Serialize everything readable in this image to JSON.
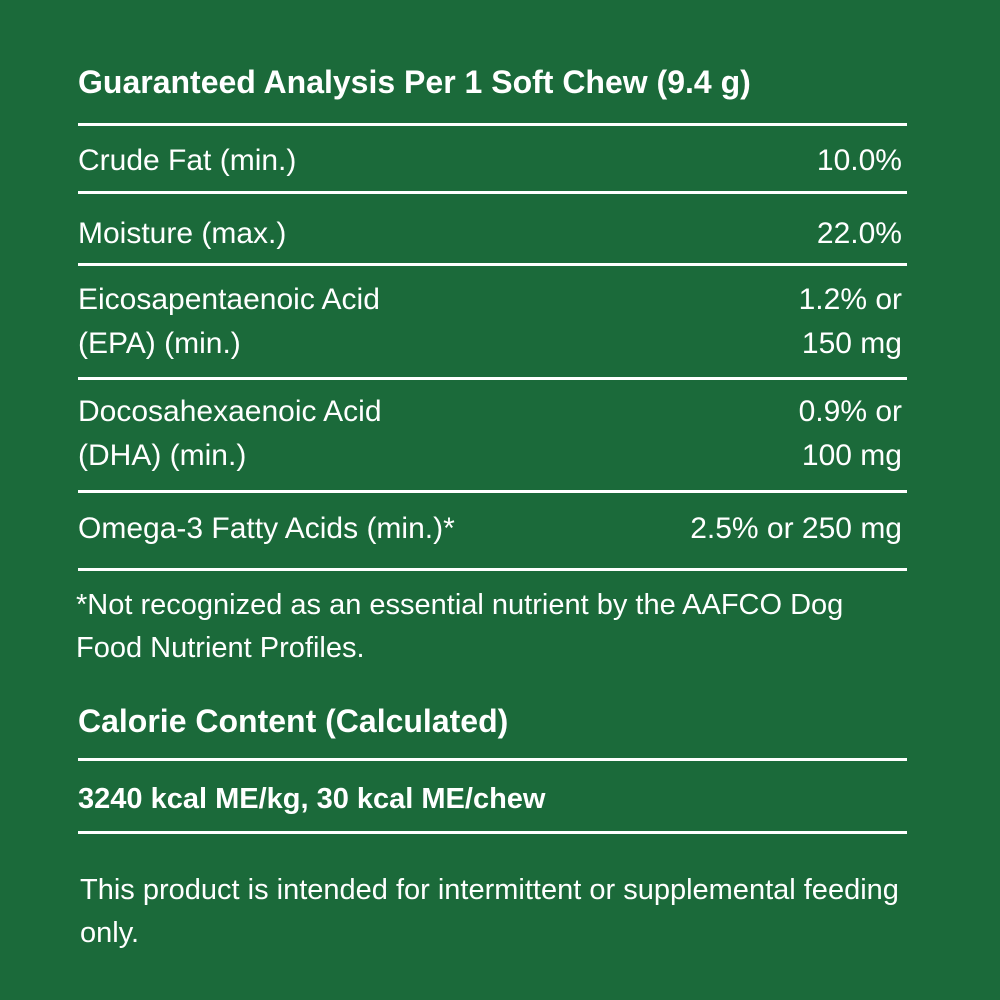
{
  "analysis": {
    "title": "Guaranteed Analysis Per 1 Soft Chew (9.4 g)",
    "rows": [
      {
        "label": "Crude Fat (min.)",
        "value": "10.0%"
      },
      {
        "label": "Moisture (max.)",
        "value": "22.0%"
      },
      {
        "label_line1": "Eicosapentaenoic Acid",
        "label_line2": "(EPA) (min.)",
        "value_line1": "1.2% or",
        "value_line2": "150 mg"
      },
      {
        "label_line1": "Docosahexaenoic Acid",
        "label_line2": "(DHA) (min.)",
        "value_line1": "0.9% or",
        "value_line2": "100 mg"
      },
      {
        "label": "Omega-3 Fatty Acids (min.)*",
        "value": "2.5% or 250 mg"
      }
    ],
    "footnote": "*Not recognized as an essential nutrient by the AAFCO Dog Food Nutrient Profiles."
  },
  "calorie": {
    "title": "Calorie Content (Calculated)",
    "value": "3240 kcal ME/kg, 30 kcal ME/chew"
  },
  "disclaimer": "This product is intended for intermittent or supplemental feeding only.",
  "colors": {
    "background": "#1b6a3a",
    "text": "#ffffff"
  }
}
